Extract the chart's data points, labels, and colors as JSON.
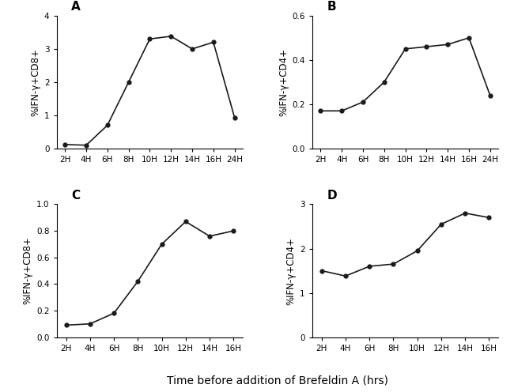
{
  "panel_A": {
    "x_labels": [
      "2H",
      "4H",
      "6H",
      "8H",
      "10H",
      "12H",
      "14H",
      "16H",
      "24H"
    ],
    "x_vals": [
      0,
      1,
      2,
      3,
      4,
      5,
      6,
      7,
      8
    ],
    "y_vals": [
      0.12,
      0.1,
      0.7,
      2.0,
      3.3,
      3.38,
      3.0,
      3.2,
      0.93
    ],
    "ylabel": "%IFN-γ+CD8+",
    "ylim": [
      0,
      4
    ],
    "yticks": [
      0,
      1,
      2,
      3,
      4
    ],
    "label": "A"
  },
  "panel_B": {
    "x_labels": [
      "2H",
      "4H",
      "6H",
      "8H",
      "10H",
      "12H",
      "14H",
      "16H",
      "24H"
    ],
    "x_vals": [
      0,
      1,
      2,
      3,
      4,
      5,
      6,
      7,
      8
    ],
    "y_vals": [
      0.17,
      0.17,
      0.21,
      0.3,
      0.45,
      0.46,
      0.47,
      0.5,
      0.24
    ],
    "ylabel": "%IFN-γ+CD4+",
    "ylim": [
      0.0,
      0.6
    ],
    "yticks": [
      0.0,
      0.2,
      0.4,
      0.6
    ],
    "label": "B"
  },
  "panel_C": {
    "x_labels": [
      "2H",
      "4H",
      "6H",
      "8H",
      "10H",
      "12H",
      "14H",
      "16H"
    ],
    "x_vals": [
      0,
      1,
      2,
      3,
      4,
      5,
      6,
      7
    ],
    "y_vals": [
      0.09,
      0.1,
      0.18,
      0.42,
      0.7,
      0.87,
      0.76,
      0.8
    ],
    "ylabel": "%IFN-γ+CD8+",
    "ylim": [
      0.0,
      1.0
    ],
    "yticks": [
      0.0,
      0.2,
      0.4,
      0.6,
      0.8,
      1.0
    ],
    "label": "C"
  },
  "panel_D": {
    "x_labels": [
      "2H",
      "4H",
      "6H",
      "8H",
      "10H",
      "12H",
      "14H",
      "16H"
    ],
    "x_vals": [
      0,
      1,
      2,
      3,
      4,
      5,
      6,
      7
    ],
    "y_vals": [
      1.5,
      1.38,
      1.6,
      1.65,
      1.95,
      2.55,
      2.8,
      2.7
    ],
    "ylabel": "%IFN-γ+CD4+",
    "ylim": [
      0,
      3
    ],
    "yticks": [
      0,
      1,
      2,
      3
    ],
    "label": "D"
  },
  "xlabel": "Time before addition of Brefeldin A (hrs)",
  "line_color": "#1a1a1a",
  "marker": "o",
  "markersize": 3.5,
  "linewidth": 1.2,
  "background_color": "#ffffff",
  "label_fontsize": 11,
  "tick_fontsize": 7.5,
  "axis_label_fontsize": 8.5,
  "xlabel_fontsize": 10
}
